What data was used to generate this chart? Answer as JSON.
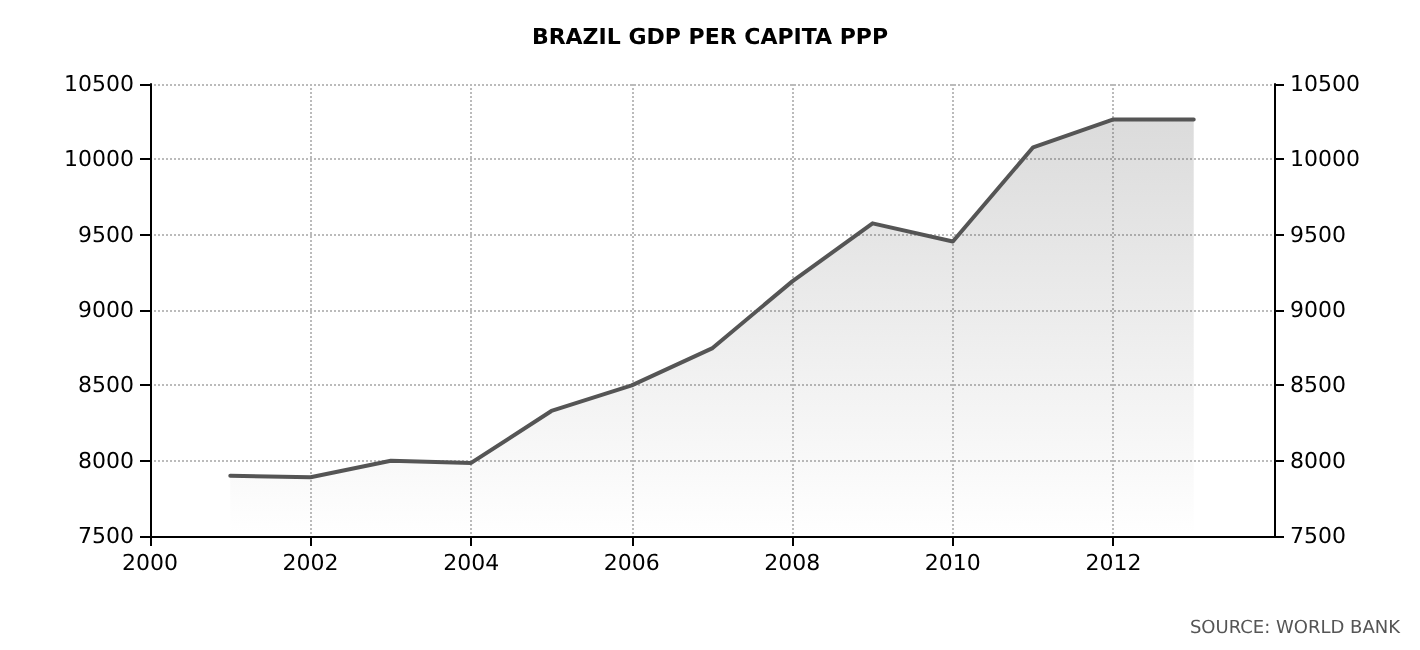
{
  "chart_data": {
    "type": "area",
    "title": "BRAZIL GDP PER CAPITA PPP",
    "x": [
      2001,
      2002,
      2003,
      2004,
      2005,
      2006,
      2007,
      2008,
      2009,
      2010,
      2011,
      2012,
      2013
    ],
    "series": [
      {
        "color": "#555555",
        "values": [
          7900,
          7890,
          8000,
          7985,
          8330,
          8500,
          8745,
          9190,
          9575,
          9455,
          10080,
          10265,
          10265
        ]
      }
    ],
    "xlim": [
      2000,
      2014
    ],
    "xticks": [
      2000,
      2002,
      2004,
      2006,
      2008,
      2010,
      2012
    ],
    "ylim": [
      7500,
      10500
    ],
    "yticks": [
      7500,
      8000,
      8500,
      9000,
      9500,
      10000,
      10500
    ],
    "y2lim": [
      7500,
      10500
    ],
    "y2ticks": [
      7500,
      8000,
      8500,
      9000,
      9500,
      10000,
      10500
    ],
    "grid": true,
    "marker": "none",
    "line_style": "solid",
    "annotations": [
      "SOURCE: WORLD BANK"
    ]
  }
}
